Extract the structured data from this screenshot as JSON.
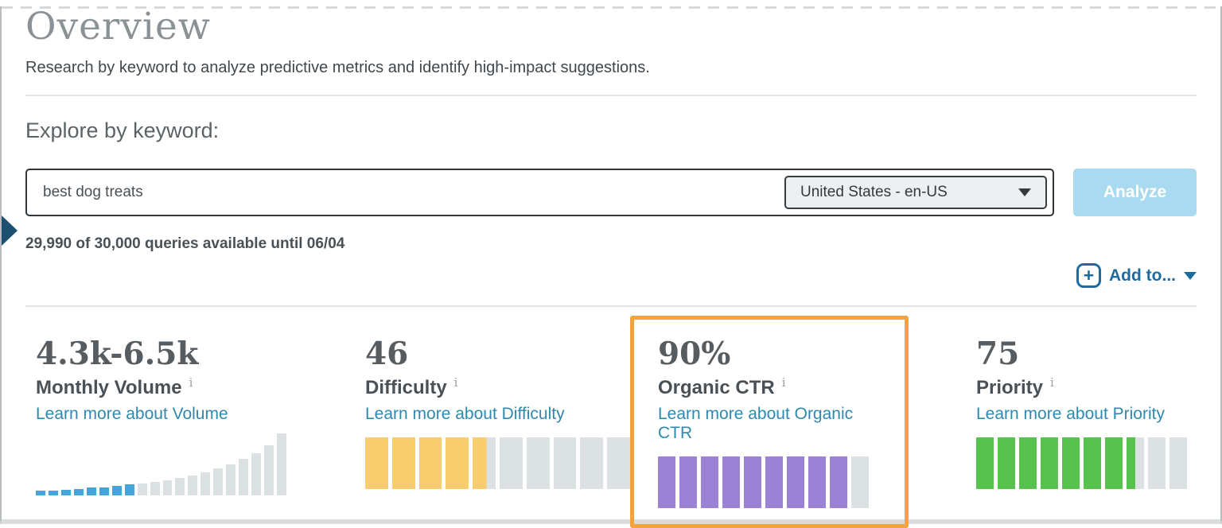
{
  "header": {
    "title": "Overview",
    "subtitle": "Research by keyword to analyze predictive metrics and identify high-impact suggestions."
  },
  "explore": {
    "heading": "Explore by keyword:",
    "search": {
      "value": "best dog treats",
      "locale_selected": "United States - en-US",
      "analyze_label": "Analyze"
    },
    "quota_text": "29,990 of 30,000 queries available until 06/04",
    "add_to_label": "Add to..."
  },
  "icons": {
    "plus": "+",
    "info": "i"
  },
  "colors": {
    "link_blue": "#2f89ae",
    "action_blue": "#1d6b9f",
    "analyze_bg": "#a9daf0",
    "highlight_orange": "#f3a440",
    "gauge_empty": "#dce1e3",
    "volume_blue": "#44a5dc",
    "difficulty_yellow": "#f8cd6d",
    "ctr_purple": "#9c82d4",
    "priority_green": "#58c24f"
  },
  "metrics": {
    "cards": [
      {
        "id": "monthly-volume",
        "value": "4.3k-6.5k",
        "label": "Monthly Volume",
        "link": "Learn more about Volume"
      },
      {
        "id": "difficulty",
        "value": "46",
        "label": "Difficulty",
        "link": "Learn more about Difficulty"
      },
      {
        "id": "organic-ctr",
        "value": "90%",
        "label": "Organic CTR",
        "link": "Learn more about Organic CTR",
        "highlighted": true
      },
      {
        "id": "priority",
        "value": "75",
        "label": "Priority",
        "link": "Learn more about Priority"
      }
    ]
  },
  "chart_data": [
    {
      "type": "bar",
      "title": "Monthly Volume trend",
      "heights_percent": [
        7,
        7,
        9,
        10,
        12,
        12,
        15,
        17,
        19,
        21,
        24,
        28,
        32,
        37,
        43,
        50,
        58,
        68,
        80,
        100
      ],
      "highlighted_count": 8,
      "highlight_color": "#44a5dc",
      "rest_color": "#dce1e3"
    },
    {
      "type": "gauge",
      "title": "Difficulty",
      "segments": 10,
      "fill_percent": 46,
      "fill_color": "#f8cd6d",
      "empty_color": "#dce1e3"
    },
    {
      "type": "gauge",
      "title": "Organic CTR",
      "segments": 10,
      "fill_percent": 90,
      "fill_color": "#9c82d4",
      "empty_color": "#dce1e3"
    },
    {
      "type": "gauge",
      "title": "Priority",
      "segments": 10,
      "fill_percent": 75,
      "fill_color": "#58c24f",
      "empty_color": "#dce1e3"
    }
  ]
}
